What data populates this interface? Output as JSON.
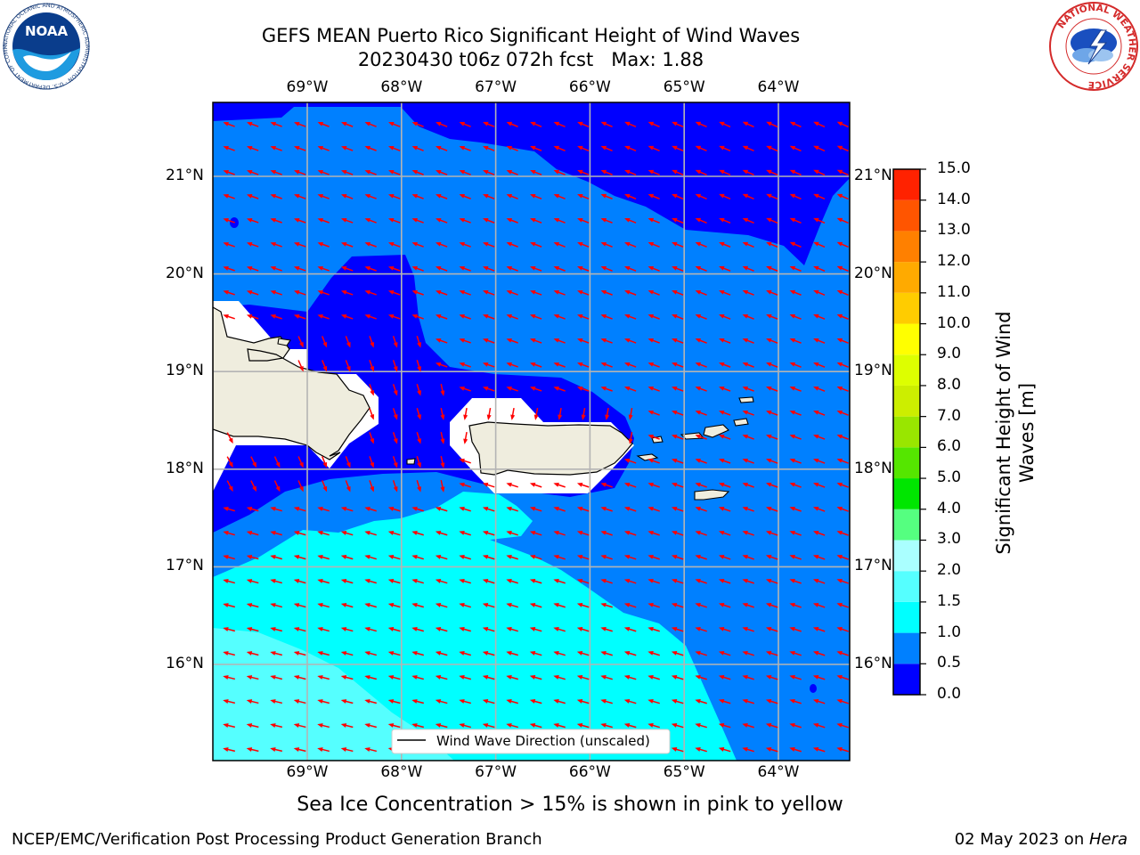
{
  "title": {
    "line1": "GEFS MEAN Puerto Rico Significant Height of Wind Waves",
    "line2": "20230430 t06z 072h fcst   Max: 1.88"
  },
  "map": {
    "lon_labels": [
      "69°W",
      "68°W",
      "67°W",
      "66°W",
      "65°W",
      "64°W"
    ],
    "lat_labels": [
      "21°N",
      "20°N",
      "19°N",
      "18°N",
      "17°N",
      "16°N"
    ],
    "lon_values": [
      -69,
      -68,
      -67,
      -66,
      -65,
      -64
    ],
    "lat_values": [
      21,
      20,
      19,
      18,
      17,
      16
    ],
    "legend_label": "Wind Wave Direction (unscaled)",
    "land_color": "#efedde",
    "arrow_color": "#ff0000"
  },
  "colorbar": {
    "title": "Significant Height of Wind Waves [m]",
    "title_line1": "Significant Height of Wind",
    "title_line2": "Waves [m]",
    "tick_labels": [
      "0.0",
      "0.5",
      "1.0",
      "1.5",
      "2.0",
      "3.0",
      "4.0",
      "5.0",
      "6.0",
      "7.0",
      "8.0",
      "9.0",
      "10.0",
      "11.0",
      "12.0",
      "13.0",
      "14.0",
      "15.0"
    ],
    "colors": [
      "#0000ff",
      "#0080ff",
      "#00ffff",
      "#55ffff",
      "#aaffff",
      "#55ff80",
      "#00e600",
      "#55e600",
      "#99e600",
      "#ccee00",
      "#ddff00",
      "#ffff00",
      "#ffcc00",
      "#ffaa00",
      "#ff8000",
      "#ff5500",
      "#ff2200"
    ]
  },
  "subtitle": "Sea Ice Concentration > 15% is shown in pink to yellow",
  "footer": {
    "left": "NCEP/EMC/Verification Post Processing Product Generation Branch",
    "right_prefix": "02 May 2023 on ",
    "right_host": "Hera"
  },
  "logos": {
    "noaa_text": "NOAA",
    "noaa_ring": "NATIONAL OCEANIC AND ATMOSPHERIC ADMINISTRATION · U.S. DEPARTMENT OF COMMERCE",
    "nws_ring": "NATIONAL WEATHER SERVICE"
  }
}
